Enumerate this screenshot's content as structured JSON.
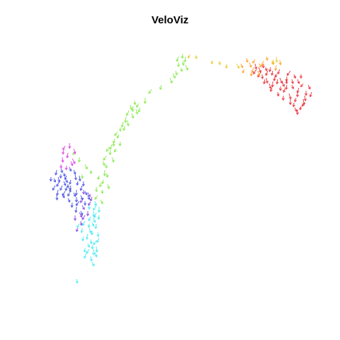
{
  "chart_data": {
    "type": "scatter",
    "title": "VeloViz",
    "xlabel": "",
    "ylabel": "",
    "axes_visible": false,
    "grid": false,
    "legend": "none",
    "marker": "velocity-arrow",
    "colors": {
      "red": "#e8202a",
      "orange": "#ff9a1a",
      "yellow": "#e6c81e",
      "green": "#7ce83c",
      "cyan": "#3ee6f0",
      "blue": "#3a44e6",
      "violet": "#7a3ae0",
      "magenta": "#e030e0"
    },
    "series": [
      {
        "color": "red",
        "points": [
          [
            405,
            108
          ],
          [
            412,
            120
          ],
          [
            420,
            130
          ],
          [
            398,
            115
          ],
          [
            385,
            100
          ],
          [
            430,
            135
          ],
          [
            425,
            150
          ],
          [
            415,
            145
          ],
          [
            402,
            125
          ],
          [
            392,
            112
          ],
          [
            375,
            95
          ],
          [
            410,
            100
          ],
          [
            420,
            112
          ],
          [
            428,
            118
          ],
          [
            432,
            128
          ],
          [
            418,
            138
          ],
          [
            408,
            132
          ],
          [
            396,
            122
          ],
          [
            388,
            108
          ],
          [
            380,
            118
          ],
          [
            370,
            105
          ],
          [
            365,
            95
          ],
          [
            360,
            90
          ],
          [
            372,
            90
          ],
          [
            382,
            95
          ],
          [
            395,
            98
          ],
          [
            415,
            105
          ],
          [
            425,
            105
          ],
          [
            435,
            120
          ],
          [
            440,
            130
          ],
          [
            430,
            145
          ],
          [
            420,
            155
          ],
          [
            410,
            140
          ],
          [
            400,
            135
          ],
          [
            392,
            130
          ],
          [
            384,
            124
          ],
          [
            376,
            110
          ],
          [
            368,
            102
          ],
          [
            362,
            98
          ],
          [
            378,
            100
          ],
          [
            390,
            104
          ],
          [
            404,
            112
          ],
          [
            412,
            112
          ],
          [
            422,
            124
          ],
          [
            428,
            140
          ],
          [
            416,
            152
          ],
          [
            405,
            120
          ],
          [
            395,
            110
          ],
          [
            385,
            115
          ],
          [
            374,
            112
          ]
        ]
      },
      {
        "color": "orange",
        "points": [
          [
            352,
            88
          ],
          [
            360,
            84
          ],
          [
            366,
            90
          ],
          [
            372,
            86
          ],
          [
            358,
            95
          ],
          [
            364,
            100
          ],
          [
            376,
            80
          ],
          [
            384,
            86
          ],
          [
            390,
            92
          ],
          [
            345,
            98
          ],
          [
            355,
            102
          ],
          [
            395,
            85
          ],
          [
            340,
            90
          ],
          [
            348,
            82
          ]
        ]
      },
      {
        "color": "yellow",
        "points": [
          [
            268,
            77
          ],
          [
            276,
            78
          ],
          [
            300,
            85
          ],
          [
            310,
            86
          ],
          [
            320,
            90
          ],
          [
            334,
            90
          ],
          [
            386,
            84
          ],
          [
            390,
            80
          ]
        ]
      },
      {
        "color": "green",
        "points": [
          [
            252,
            80
          ],
          [
            258,
            86
          ],
          [
            262,
            92
          ],
          [
            255,
            96
          ],
          [
            248,
            100
          ],
          [
            244,
            104
          ],
          [
            252,
            88
          ],
          [
            262,
            80
          ],
          [
            258,
            76
          ],
          [
            240,
            110
          ],
          [
            228,
            120
          ],
          [
            214,
            126
          ],
          [
            205,
            138
          ],
          [
            196,
            146
          ],
          [
            188,
            150
          ],
          [
            182,
            156
          ],
          [
            178,
            165
          ],
          [
            174,
            172
          ],
          [
            170,
            180
          ],
          [
            166,
            186
          ],
          [
            162,
            196
          ],
          [
            158,
            204
          ],
          [
            156,
            212
          ],
          [
            150,
            220
          ],
          [
            145,
            228
          ],
          [
            148,
            240
          ],
          [
            140,
            248
          ],
          [
            146,
            254
          ],
          [
            152,
            260
          ],
          [
            144,
            268
          ],
          [
            138,
            276
          ],
          [
            142,
            282
          ],
          [
            186,
            160
          ],
          [
            192,
            154
          ],
          [
            180,
            170
          ],
          [
            176,
            178
          ],
          [
            168,
            190
          ],
          [
            160,
            200
          ],
          [
            154,
            208
          ],
          [
            150,
            245
          ],
          [
            142,
            258
          ],
          [
            136,
            264
          ],
          [
            128,
            240
          ],
          [
            120,
            232
          ],
          [
            112,
            222
          ],
          [
            106,
            214
          ],
          [
            116,
            246
          ],
          [
            150,
            232
          ],
          [
            158,
            222
          ],
          [
            164,
            210
          ],
          [
            170,
            200
          ],
          [
            190,
            142
          ],
          [
            198,
            152
          ],
          [
            184,
            148
          ]
        ]
      },
      {
        "color": "cyan",
        "points": [
          [
            136,
            290
          ],
          [
            132,
            298
          ],
          [
            128,
            306
          ],
          [
            130,
            314
          ],
          [
            126,
            322
          ],
          [
            124,
            330
          ],
          [
            128,
            338
          ],
          [
            130,
            346
          ],
          [
            126,
            352
          ],
          [
            122,
            358
          ],
          [
            128,
            362
          ],
          [
            134,
            356
          ],
          [
            136,
            340
          ],
          [
            138,
            328
          ],
          [
            136,
            316
          ],
          [
            132,
            308
          ],
          [
            120,
            312
          ],
          [
            116,
            322
          ],
          [
            118,
            334
          ],
          [
            124,
            344
          ],
          [
            132,
            352
          ],
          [
            136,
            300
          ],
          [
            140,
            292
          ],
          [
            126,
            290
          ],
          [
            112,
            316
          ],
          [
            108,
            394
          ],
          [
            130,
            370
          ],
          [
            136,
            348
          ],
          [
            140,
            336
          ],
          [
            126,
            316
          ],
          [
            130,
            326
          ],
          [
            120,
            350
          ],
          [
            134,
            284
          ],
          [
            140,
            304
          ]
        ]
      },
      {
        "color": "blue",
        "points": [
          [
            80,
            240
          ],
          [
            86,
            246
          ],
          [
            92,
            252
          ],
          [
            96,
            260
          ],
          [
            100,
            266
          ],
          [
            104,
            272
          ],
          [
            108,
            278
          ],
          [
            112,
            284
          ],
          [
            90,
            244
          ],
          [
            84,
            256
          ],
          [
            78,
            262
          ],
          [
            82,
            268
          ],
          [
            88,
            274
          ],
          [
            94,
            264
          ],
          [
            100,
            254
          ],
          [
            106,
            246
          ],
          [
            110,
            256
          ],
          [
            116,
            262
          ],
          [
            120,
            270
          ],
          [
            124,
            276
          ],
          [
            96,
            280
          ],
          [
            102,
            286
          ],
          [
            108,
            292
          ],
          [
            114,
            298
          ],
          [
            76,
            252
          ],
          [
            86,
            238
          ],
          [
            98,
            236
          ],
          [
            104,
            240
          ],
          [
            112,
            248
          ],
          [
            118,
            256
          ],
          [
            92,
            270
          ],
          [
            80,
            275
          ],
          [
            72,
            250
          ],
          [
            94,
            248
          ],
          [
            100,
            262
          ],
          [
            108,
            268
          ],
          [
            114,
            276
          ],
          [
            120,
            284
          ],
          [
            88,
            262
          ],
          [
            82,
            250
          ],
          [
            90,
            256
          ],
          [
            98,
            272
          ]
        ]
      },
      {
        "color": "violet",
        "points": [
          [
            118,
            268
          ],
          [
            124,
            272
          ],
          [
            130,
            278
          ],
          [
            116,
            290
          ],
          [
            124,
            298
          ],
          [
            112,
            300
          ],
          [
            106,
            304
          ],
          [
            110,
            322
          ],
          [
            118,
            280
          ],
          [
            128,
            285
          ],
          [
            114,
            312
          ],
          [
            120,
            304
          ]
        ]
      },
      {
        "color": "magenta",
        "points": [
          [
            92,
            206
          ],
          [
            98,
            202
          ],
          [
            104,
            210
          ],
          [
            96,
            216
          ],
          [
            88,
            222
          ],
          [
            100,
            228
          ],
          [
            86,
            232
          ],
          [
            94,
            234
          ],
          [
            102,
            224
          ],
          [
            90,
            212
          ]
        ]
      }
    ]
  }
}
